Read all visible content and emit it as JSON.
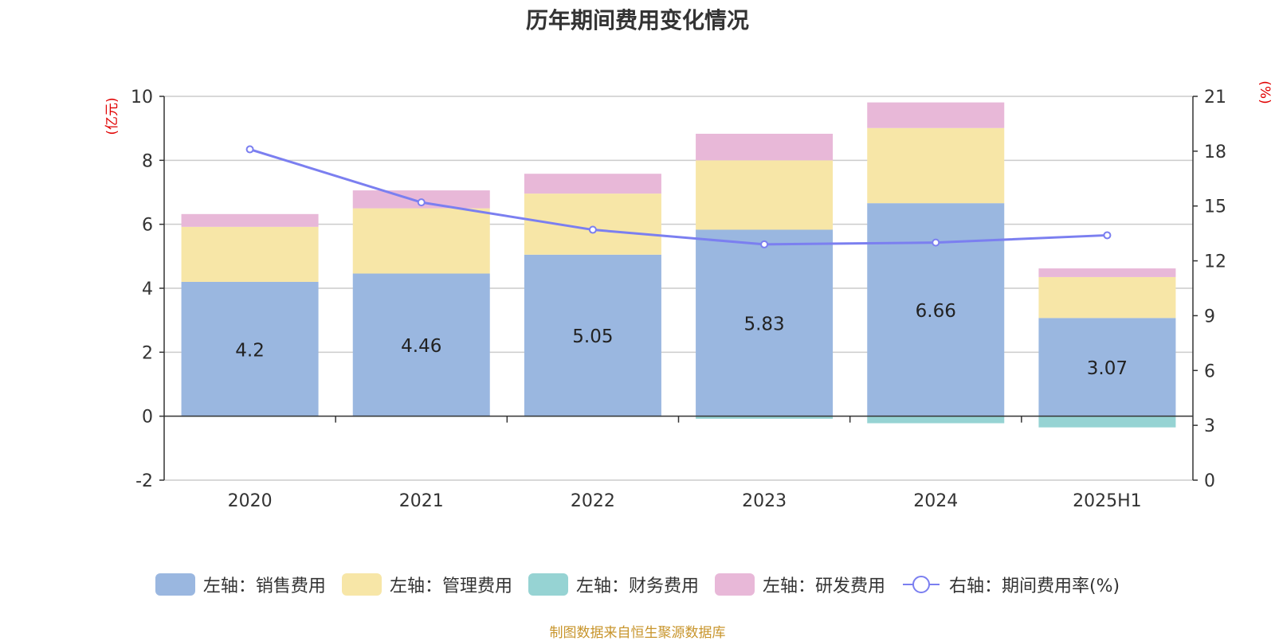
{
  "title": "历年期间费用变化情况",
  "source_note": "制图数据来自恒生聚源数据库",
  "colors": {
    "sales": "#9ab7e0",
    "admin": "#f7e6a7",
    "finance": "#96d3d3",
    "rnd": "#e8b8d8",
    "rate_line": "#7b7ff0",
    "axis_unit": "#e00000",
    "grid": "#cccccc",
    "text": "#333333"
  },
  "chart_data": {
    "type": "bar",
    "stacked": true,
    "categories": [
      "2020",
      "2021",
      "2022",
      "2023",
      "2024",
      "2025H1"
    ],
    "left_axis": {
      "unit_label": "(亿元)",
      "ylim": [
        -2,
        10
      ],
      "ticks": [
        -2,
        0,
        2,
        4,
        6,
        8,
        10
      ]
    },
    "right_axis": {
      "unit_label": "(%)",
      "ylim": [
        0,
        21
      ],
      "ticks": [
        0,
        3,
        6,
        9,
        12,
        15,
        18,
        21
      ]
    },
    "series": [
      {
        "key": "sales",
        "name": "左轴：销售费用",
        "axis": "left",
        "type": "bar",
        "values": [
          4.2,
          4.46,
          5.05,
          5.83,
          6.66,
          3.07
        ],
        "show_labels": true
      },
      {
        "key": "admin",
        "name": "左轴：管理费用",
        "axis": "left",
        "type": "bar",
        "values": [
          1.72,
          2.04,
          1.91,
          2.17,
          2.35,
          1.28
        ]
      },
      {
        "key": "finance",
        "name": "左轴：财务费用",
        "axis": "left",
        "type": "bar",
        "values": [
          -0.02,
          -0.02,
          -0.02,
          -0.08,
          -0.22,
          -0.35
        ]
      },
      {
        "key": "rnd",
        "name": "左轴：研发费用",
        "axis": "left",
        "type": "bar",
        "values": [
          0.4,
          0.56,
          0.62,
          0.83,
          0.8,
          0.27
        ]
      },
      {
        "key": "rate",
        "name": "右轴：期间费用率(%)",
        "axis": "right",
        "type": "line",
        "values": [
          18.1,
          15.2,
          13.7,
          12.9,
          13.0,
          13.4
        ]
      }
    ],
    "legend_position": "bottom",
    "grid": true
  }
}
